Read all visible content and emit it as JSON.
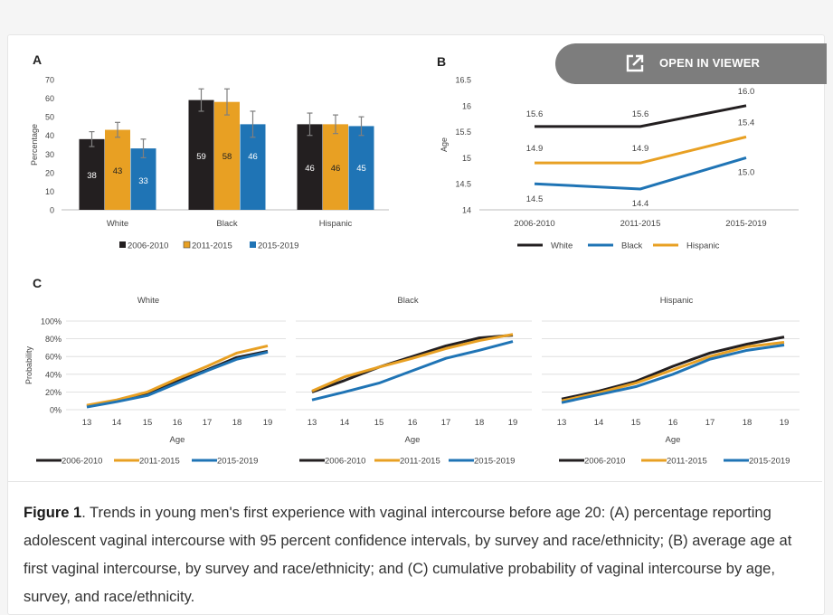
{
  "viewer": {
    "label": "OPEN IN VIEWER",
    "icon": "open-external-icon"
  },
  "caption": {
    "label": "Figure 1",
    "text": ". Trends in young men's first experience with vaginal intercourse before age 20: (A) percentage reporting adolescent vaginal intercourse with 95 percent confidence intervals, by survey and race/ethnicity; (B) average age at first vaginal intercourse, by survey and race/ethnicity; and (C) cumulative probability of vaginal intercourse by age, survey, and race/ethnicity."
  },
  "colors": {
    "series1": "#231f20",
    "series2": "#e8a023",
    "series3": "#1f74b5",
    "error": "#7f7f7f",
    "grid": "#d9d9d9"
  },
  "chart_data": [
    {
      "panel": "A",
      "type": "bar",
      "ylabel": "Percentage",
      "ylim": [
        0,
        70
      ],
      "yticks": [
        "0",
        "10",
        "20",
        "30",
        "40",
        "50",
        "60",
        "70"
      ],
      "categories": [
        "White",
        "Black",
        "Hispanic"
      ],
      "series": [
        {
          "name": "2006-2010",
          "values": [
            38,
            59,
            46
          ],
          "ci": [
            [
              34,
              42
            ],
            [
              53,
              65
            ],
            [
              40,
              52
            ]
          ]
        },
        {
          "name": "2011-2015",
          "values": [
            43,
            58,
            46
          ],
          "ci": [
            [
              39,
              47
            ],
            [
              51,
              65
            ],
            [
              41,
              51
            ]
          ]
        },
        {
          "name": "2015-2019",
          "values": [
            33,
            46,
            45
          ],
          "ci": [
            [
              28,
              38
            ],
            [
              39,
              53
            ],
            [
              40,
              50
            ]
          ]
        }
      ]
    },
    {
      "panel": "B",
      "type": "line",
      "ylabel": "Age",
      "ylim": [
        14,
        16.5
      ],
      "yticks": [
        "14",
        "14.5",
        "15",
        "15.5",
        "16",
        "16.5"
      ],
      "categories": [
        "2006-2010",
        "2011-2015",
        "2015-2019"
      ],
      "series": [
        {
          "name": "White",
          "values": [
            15.6,
            15.6,
            16.0
          ],
          "labels": [
            "15.6",
            "15.6",
            "16.0"
          ]
        },
        {
          "name": "Black",
          "values": [
            14.5,
            14.4,
            15.0
          ],
          "labels": [
            "14.5",
            "14.4",
            "15.0"
          ]
        },
        {
          "name": "Hispanic",
          "values": [
            14.9,
            14.9,
            15.4
          ],
          "labels": [
            "14.9",
            "14.9",
            "15.4"
          ]
        }
      ]
    },
    {
      "panel": "C",
      "type": "line",
      "ylabel": "Probability",
      "xlabel": "Age",
      "yticks": [
        "0%",
        "20%",
        "40%",
        "60%",
        "80%",
        "100%"
      ],
      "ylim": [
        0,
        100
      ],
      "x": [
        13,
        14,
        15,
        16,
        17,
        18,
        19
      ],
      "xticks": [
        "13",
        "14",
        "15",
        "16",
        "17",
        "18",
        "19"
      ],
      "series_names": [
        "2006-2010",
        "2011-2015",
        "2015-2019"
      ],
      "subplots": [
        {
          "title": "White",
          "series": [
            {
              "name": "2006-2010",
              "values": [
                4,
                10,
                18,
                32,
                45,
                59,
                66
              ]
            },
            {
              "name": "2011-2015",
              "values": [
                5,
                11,
                20,
                35,
                49,
                64,
                72
              ]
            },
            {
              "name": "2015-2019",
              "values": [
                3,
                9,
                16,
                30,
                44,
                57,
                65
              ]
            }
          ]
        },
        {
          "title": "Black",
          "series": [
            {
              "name": "2006-2010",
              "values": [
                20,
                33,
                48,
                60,
                72,
                81,
                84
              ]
            },
            {
              "name": "2011-2015",
              "values": [
                21,
                37,
                48,
                58,
                69,
                78,
                85
              ]
            },
            {
              "name": "2015-2019",
              "values": [
                11,
                20,
                30,
                44,
                58,
                67,
                77
              ]
            }
          ]
        },
        {
          "title": "Hispanic",
          "series": [
            {
              "name": "2006-2010",
              "values": [
                12,
                21,
                32,
                49,
                64,
                74,
                82
              ]
            },
            {
              "name": "2011-2015",
              "values": [
                10,
                19,
                30,
                45,
                60,
                71,
                76
              ]
            },
            {
              "name": "2015-2019",
              "values": [
                8,
                17,
                26,
                40,
                57,
                67,
                73
              ]
            }
          ]
        }
      ]
    }
  ]
}
